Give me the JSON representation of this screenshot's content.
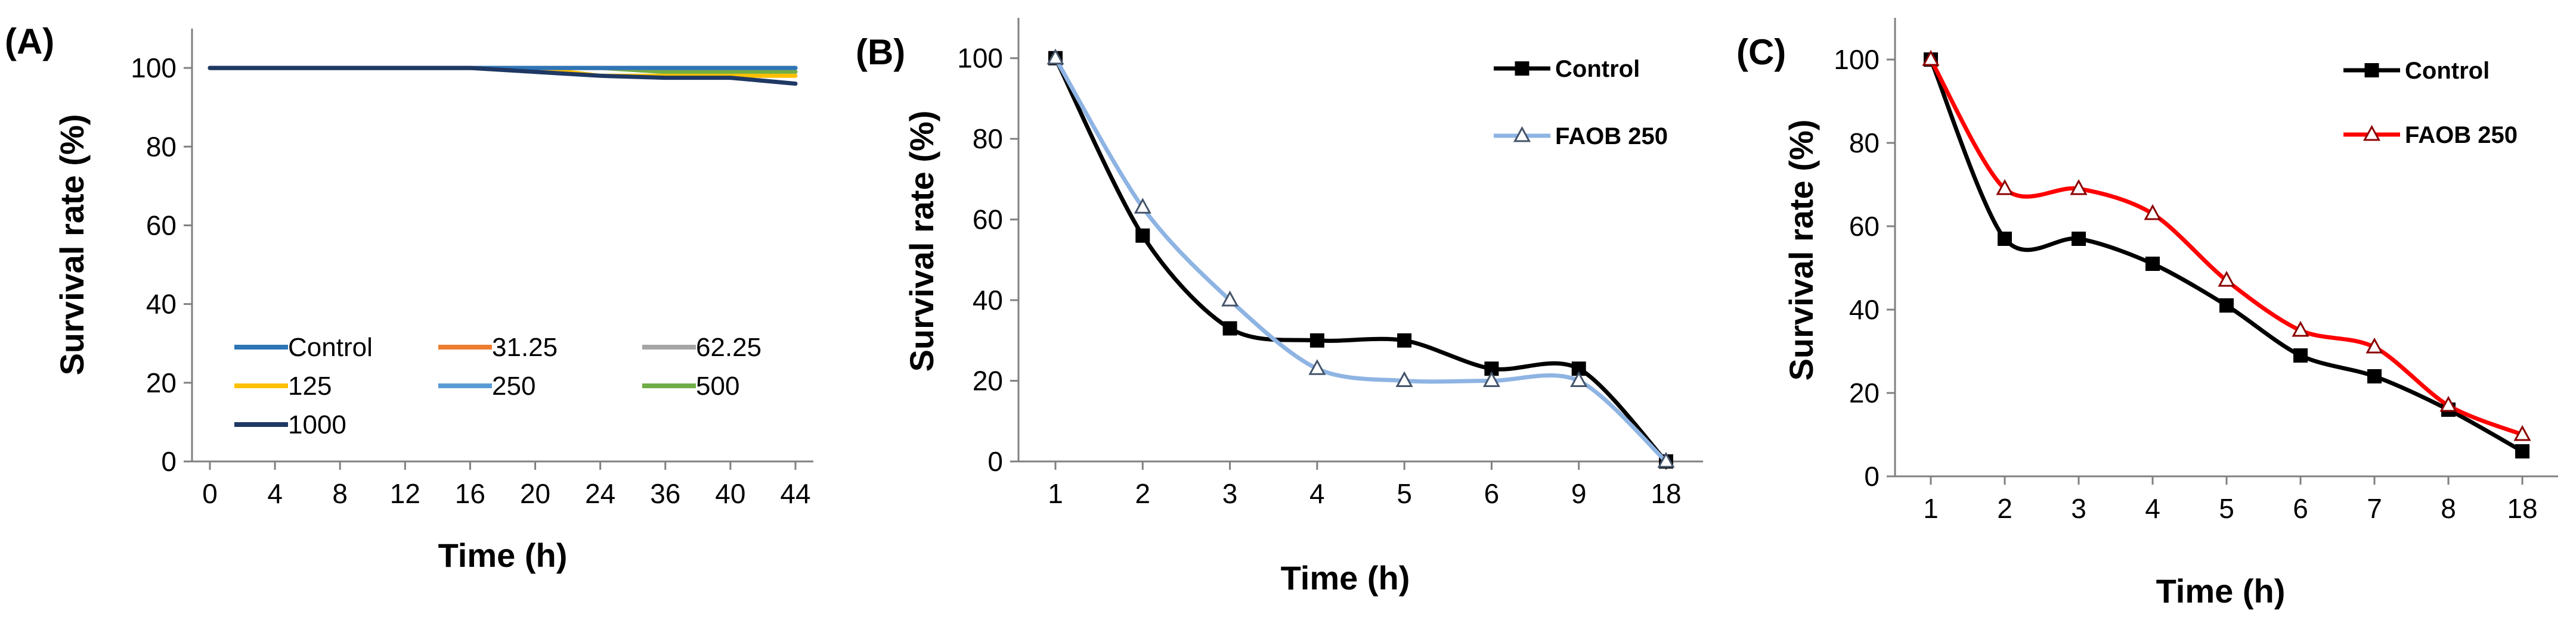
{
  "figure": {
    "panels": [
      "(A)",
      "(B)",
      "(C)"
    ]
  },
  "chart_data": [
    {
      "type": "line",
      "panel_label": "(A)",
      "title": "",
      "xlabel": "Time (h)",
      "ylabel": "Survival rate (%)",
      "categories": [
        "0",
        "4",
        "8",
        "12",
        "16",
        "20",
        "24",
        "36",
        "40",
        "44"
      ],
      "ylim": [
        0,
        110
      ],
      "yticks": [
        0,
        20,
        40,
        60,
        80,
        100
      ],
      "grid": false,
      "legend": "bottom-left, 3 columns",
      "series": [
        {
          "name": "Control",
          "color": "#2E75B6",
          "values": [
            100,
            100,
            100,
            100,
            100,
            100,
            100,
            100,
            100,
            100
          ]
        },
        {
          "name": "31.25",
          "color": "#ED7D31",
          "values": [
            100,
            100,
            100,
            100,
            100,
            100,
            100,
            100,
            100,
            100
          ]
        },
        {
          "name": "62.25",
          "color": "#A5A5A5",
          "values": [
            100,
            100,
            100,
            100,
            100,
            100,
            100,
            100,
            100,
            100
          ]
        },
        {
          "name": "125",
          "color": "#FFC000",
          "values": [
            100,
            100,
            100,
            100,
            100,
            100,
            98,
            98,
            98,
            98
          ]
        },
        {
          "name": "250",
          "color": "#5B9BD5",
          "values": [
            100,
            100,
            100,
            100,
            100,
            100,
            100,
            100,
            100,
            100
          ]
        },
        {
          "name": "500",
          "color": "#70AD47",
          "values": [
            100,
            100,
            100,
            100,
            100,
            100,
            100,
            99,
            99,
            99
          ]
        },
        {
          "name": "1000",
          "color": "#1F3864",
          "values": [
            100,
            100,
            100,
            100,
            100,
            99,
            98,
            97.5,
            97.5,
            96
          ]
        }
      ]
    },
    {
      "type": "line",
      "panel_label": "(B)",
      "title": "",
      "xlabel": "Time (h)",
      "ylabel": "Survival rate (%)",
      "categories": [
        "1",
        "2",
        "3",
        "4",
        "5",
        "6",
        "9",
        "18"
      ],
      "ylim": [
        0,
        110
      ],
      "yticks": [
        0,
        20,
        40,
        60,
        80,
        100
      ],
      "grid": false,
      "legend": "top-right",
      "series": [
        {
          "name": "Control",
          "color": "#000000",
          "marker": "square",
          "values": [
            100,
            56,
            33,
            30,
            30,
            23,
            23,
            0
          ]
        },
        {
          "name": "FAOB 250",
          "color": "#8EB4E3",
          "marker": "triangle",
          "values": [
            100,
            63,
            40,
            23,
            20,
            20,
            20,
            0
          ]
        }
      ]
    },
    {
      "type": "line",
      "panel_label": "(C)",
      "title": "",
      "xlabel": "Time (h)",
      "ylabel": "Survival rate (%)",
      "categories": [
        "1",
        "2",
        "3",
        "4",
        "5",
        "6",
        "7",
        "8",
        "18"
      ],
      "ylim": [
        0,
        110
      ],
      "yticks": [
        0,
        20,
        40,
        60,
        80,
        100
      ],
      "grid": false,
      "legend": "top-right",
      "series": [
        {
          "name": "Control",
          "color": "#000000",
          "marker": "square",
          "values": [
            100,
            57,
            57,
            51,
            41,
            29,
            24,
            16,
            6
          ]
        },
        {
          "name": "FAOB 250",
          "color": "#FF0000",
          "marker": "triangle",
          "values": [
            100,
            69,
            69,
            63,
            47,
            35,
            31,
            17,
            10
          ]
        }
      ]
    }
  ]
}
